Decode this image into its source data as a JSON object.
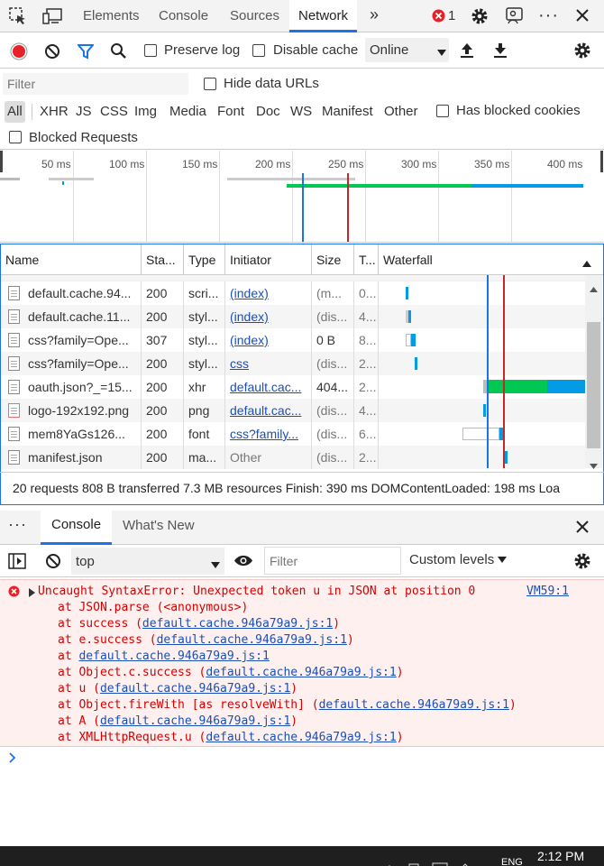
{
  "tabs": [
    {
      "label": "Elements"
    },
    {
      "label": "Console"
    },
    {
      "label": "Sources"
    },
    {
      "label": "Network"
    }
  ],
  "error_count": "1",
  "toolbar": {
    "preserve_log": "Preserve log",
    "disable_cache": "Disable cache",
    "throttle": "Online"
  },
  "filter": {
    "placeholder": "Filter",
    "hide_data_urls": "Hide data URLs"
  },
  "types": [
    "All",
    "XHR",
    "JS",
    "CSS",
    "Img",
    "Media",
    "Font",
    "Doc",
    "WS",
    "Manifest",
    "Other"
  ],
  "has_blocked_cookies": "Has blocked cookies",
  "blocked_requests": "Blocked Requests",
  "overview_ticks": [
    "50 ms",
    "100 ms",
    "150 ms",
    "200 ms",
    "250 ms",
    "300 ms",
    "350 ms",
    "400 ms"
  ],
  "columns": {
    "name": "Name",
    "status": "Sta...",
    "type": "Type",
    "initiator": "Initiator",
    "size": "Size",
    "time": "T...",
    "waterfall": "Waterfall"
  },
  "rows": [
    {
      "name": "default.cache.94...",
      "status": "200",
      "type": "scri...",
      "initiator": "(index)",
      "size": "(m...",
      "time": "0..."
    },
    {
      "name": "default.cache.11...",
      "status": "200",
      "type": "styl...",
      "initiator": "(index)",
      "size": "(dis...",
      "time": "4..."
    },
    {
      "name": "css?family=Ope...",
      "status": "307",
      "type": "styl...",
      "initiator": "(index)",
      "size": "0 B",
      "time": "8..."
    },
    {
      "name": "css?family=Ope...",
      "status": "200",
      "type": "styl...",
      "initiator": "css",
      "size": "(dis...",
      "time": "2..."
    },
    {
      "name": "oauth.json?_=15...",
      "status": "200",
      "type": "xhr",
      "initiator": "default.cac...",
      "size": "404...",
      "time": "2..."
    },
    {
      "name": "logo-192x192.png",
      "status": "200",
      "type": "png",
      "initiator": "default.cac...",
      "size": "(dis...",
      "time": "4..."
    },
    {
      "name": "mem8YaGs126...",
      "status": "200",
      "type": "font",
      "initiator": "css?family...",
      "size": "(dis...",
      "time": "6..."
    },
    {
      "name": "manifest.json",
      "status": "200",
      "type": "ma...",
      "initiator": "Other",
      "size": "(dis...",
      "time": "2..."
    }
  ],
  "status_bar": "20 requests  808 B transferred  7.3 MB resources  Finish: 390 ms  DOMContentLoaded: 198 ms  Loa",
  "drawer": {
    "console_tab": "Console",
    "whats_new_tab": "What's New"
  },
  "console": {
    "context": "top",
    "filter_placeholder": "Filter",
    "levels": "Custom levels"
  },
  "error": {
    "message": "Uncaught SyntaxError: Unexpected token u in JSON at position 0",
    "source": "VM59:1",
    "stack": [
      {
        "prefix": "at JSON.parse (<anonymous>)",
        "link": "",
        "suffix": ""
      },
      {
        "prefix": "at success (",
        "link": "default.cache.946a79a9.js:1",
        "suffix": ")"
      },
      {
        "prefix": "at e.success (",
        "link": "default.cache.946a79a9.js:1",
        "suffix": ")"
      },
      {
        "prefix": "at ",
        "link": "default.cache.946a79a9.js:1",
        "suffix": ""
      },
      {
        "prefix": "at Object.c.success (",
        "link": "default.cache.946a79a9.js:1",
        "suffix": ")"
      },
      {
        "prefix": "at u (",
        "link": "default.cache.946a79a9.js:1",
        "suffix": ")"
      },
      {
        "prefix": "at Object.fireWith [as resolveWith] (",
        "link": "default.cache.946a79a9.js:1",
        "suffix": ")"
      },
      {
        "prefix": "at A (",
        "link": "default.cache.946a79a9.js:1",
        "suffix": ")"
      },
      {
        "prefix": "at XMLHttpRequest.u (",
        "link": "default.cache.946a79a9.js:1",
        "suffix": ")"
      }
    ]
  },
  "taskbar": {
    "time": "2:12 PM",
    "lang": "ENG"
  },
  "colors": {
    "accent": "#1a73e8",
    "error": "#d40000",
    "record": "#e8202a",
    "domcontent_line": "#1a73e8",
    "load_line": "#c62828",
    "waiting": "#00c853",
    "download": "#039be5"
  }
}
